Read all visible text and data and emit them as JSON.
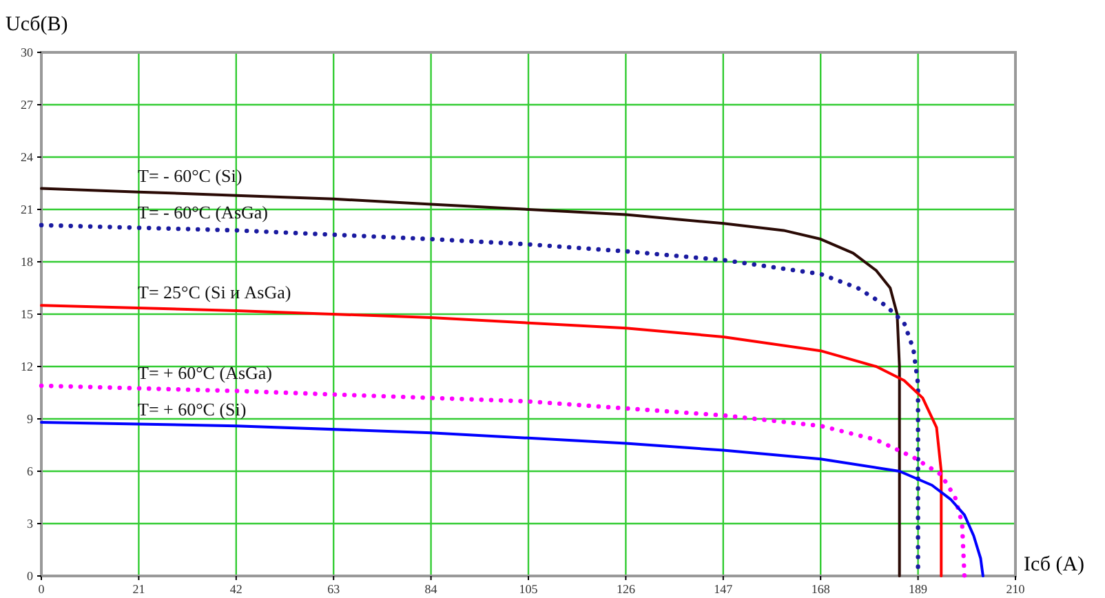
{
  "chart_data": {
    "type": "line",
    "xlabel": "Iсб (А)",
    "ylabel": "Uсб(В)",
    "xlim": [
      0,
      210
    ],
    "ylim": [
      0,
      30
    ],
    "xticks": [
      0,
      21,
      42,
      63,
      84,
      105,
      126,
      147,
      168,
      189,
      210
    ],
    "yticks": [
      0,
      3,
      6,
      9,
      12,
      15,
      18,
      21,
      24,
      27,
      30
    ],
    "grid": true,
    "legend": false,
    "marker": "none",
    "series": [
      {
        "name": "T= - 60°C (Si)",
        "color": "#2a0a05",
        "line_style": "solid",
        "x": [
          0,
          21,
          42,
          63,
          84,
          105,
          126,
          147,
          160,
          168,
          175,
          180,
          183,
          184.5,
          185,
          185
        ],
        "values": [
          22.2,
          22.0,
          21.8,
          21.6,
          21.3,
          21.0,
          20.7,
          20.2,
          19.8,
          19.3,
          18.5,
          17.5,
          16.5,
          15,
          12,
          0
        ]
      },
      {
        "name": "T= - 60°C (AsGa)",
        "color": "#1a1aa0",
        "line_style": "dotted",
        "x": [
          0,
          42,
          84,
          105,
          126,
          147,
          168,
          176,
          182,
          186,
          188,
          189,
          189
        ],
        "values": [
          20.1,
          19.8,
          19.3,
          19.0,
          18.6,
          18.1,
          17.3,
          16.5,
          15.5,
          14.5,
          13,
          11,
          0
        ]
      },
      {
        "name": "T= 25°C (Si и AsGa)",
        "color": "#ff0000",
        "line_style": "solid",
        "x": [
          0,
          42,
          84,
          105,
          126,
          147,
          168,
          180,
          186,
          190,
          193,
          194,
          194
        ],
        "values": [
          15.5,
          15.2,
          14.8,
          14.5,
          14.2,
          13.7,
          12.9,
          12.0,
          11.2,
          10.2,
          8.5,
          6,
          0
        ]
      },
      {
        "name": "T= + 60°C (AsGa)",
        "color": "#ff00ff",
        "line_style": "dotted",
        "x": [
          0,
          42,
          84,
          105,
          126,
          147,
          168,
          180,
          188,
          194,
          197,
          198.5,
          199
        ],
        "values": [
          10.9,
          10.6,
          10.2,
          10.0,
          9.6,
          9.2,
          8.6,
          7.8,
          6.8,
          5.8,
          4.5,
          3,
          0
        ]
      },
      {
        "name": "T= + 60°C (Si)",
        "color": "#0000ff",
        "line_style": "solid",
        "x": [
          0,
          42,
          84,
          105,
          126,
          147,
          168,
          185,
          192,
          196,
          199,
          201,
          202.5,
          203
        ],
        "values": [
          8.8,
          8.6,
          8.2,
          7.9,
          7.6,
          7.2,
          6.7,
          6.0,
          5.2,
          4.4,
          3.5,
          2.3,
          1,
          0
        ]
      }
    ]
  }
}
